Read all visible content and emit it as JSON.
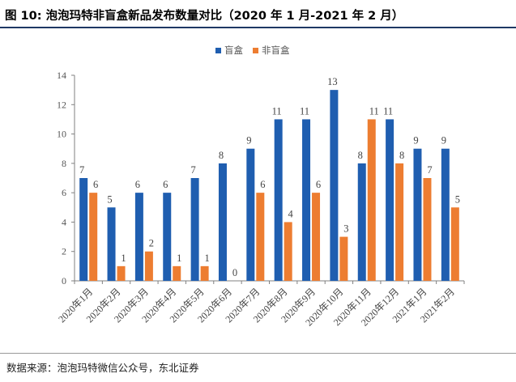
{
  "figure": {
    "title": "图 10: 泡泡玛特非盲盒新品发布数量对比（2020 年 1 月-2021 年 2 月）",
    "source": "数据来源：泡泡玛特微信公众号，东北证券"
  },
  "colors": {
    "series1": "#1f5eb0",
    "series2": "#ed7d31",
    "axis": "#808080",
    "accent_rule": "#1f3864"
  },
  "chart_data": {
    "type": "bar",
    "title": "",
    "xlabel": "",
    "ylabel": "",
    "ylim": [
      0,
      14
    ],
    "yticks": [
      0,
      2,
      4,
      6,
      8,
      10,
      12,
      14
    ],
    "grid": false,
    "legend_position": "top-center",
    "categories": [
      "2020年1月",
      "2020年2月",
      "2020年3月",
      "2020年4月",
      "2020年5月",
      "2020年6月",
      "2020年7月",
      "2020年8月",
      "2020年9月",
      "2020年10月",
      "2020年11月",
      "2020年12月",
      "2021年1月",
      "2021年2月"
    ],
    "series": [
      {
        "name": "盲盒",
        "color": "#1f5eb0",
        "values": [
          7,
          5,
          6,
          6,
          7,
          8,
          9,
          11,
          11,
          13,
          8,
          11,
          9,
          9
        ]
      },
      {
        "name": "非盲盒",
        "color": "#ed7d31",
        "values": [
          6,
          1,
          2,
          1,
          1,
          0,
          6,
          4,
          6,
          3,
          11,
          8,
          7,
          5
        ]
      }
    ]
  }
}
